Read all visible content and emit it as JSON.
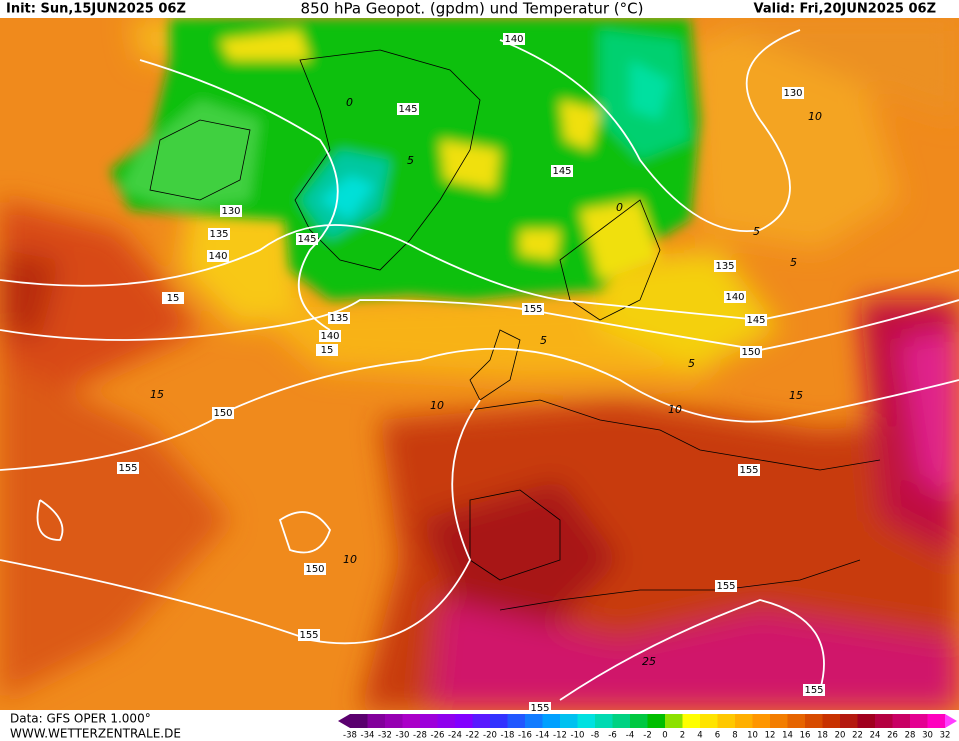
{
  "header": {
    "init": "Init: Sun,15JUN2025 06Z",
    "title": "850 hPa Geopot. (gpdm) und Temperatur (°C)",
    "valid": "Valid: Fri,20JUN2025 06Z"
  },
  "footer": {
    "data": "Data: GFS OPER 1.000°",
    "site": "WWW.WETTERZENTRALE.DE"
  },
  "contour_labels": [
    140,
    130,
    145,
    145,
    130,
    135,
    140,
    15,
    145,
    135,
    140,
    15,
    155,
    135,
    140,
    145,
    150,
    150,
    155,
    155,
    150,
    155,
    155,
    155,
    155
  ],
  "isotherm_labels": [
    0,
    5,
    10,
    5,
    5,
    5,
    10,
    10,
    15,
    15,
    10,
    25,
    5,
    0
  ],
  "colorbar_labels": [
    -38,
    -34,
    -32,
    -30,
    -28,
    -26,
    -24,
    -22,
    -20,
    -18,
    -16,
    -14,
    -12,
    -10,
    -8,
    -6,
    -4,
    -2,
    0,
    2,
    4,
    6,
    8,
    10,
    12,
    14,
    16,
    18,
    20,
    22,
    24,
    26,
    28,
    30,
    32
  ]
}
